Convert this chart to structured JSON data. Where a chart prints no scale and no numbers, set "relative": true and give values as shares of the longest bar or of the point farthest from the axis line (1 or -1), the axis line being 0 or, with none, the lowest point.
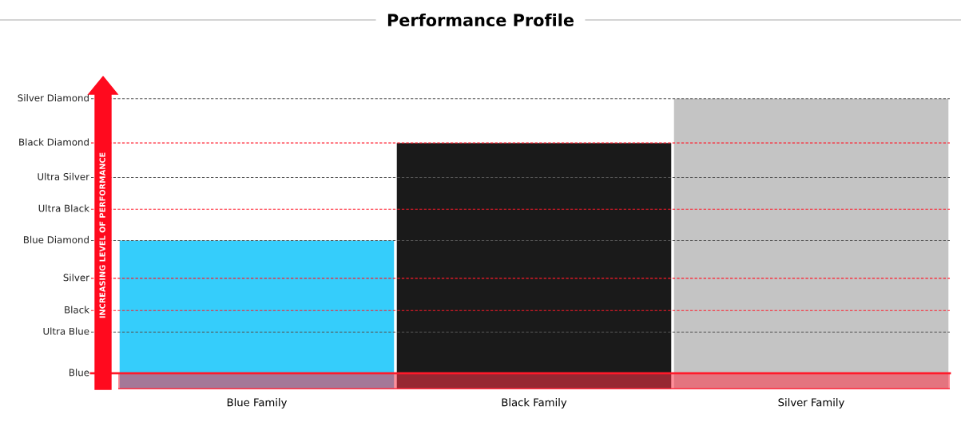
{
  "chart_data": {
    "type": "bar",
    "title": "Performance Profile",
    "categories": [
      "Blue Family",
      "Black Family",
      "Silver Family"
    ],
    "values": [
      0.512,
      0.848,
      1
    ],
    "colors": [
      "#35cdfb",
      "#1a1a1a",
      "#c4c4c4"
    ],
    "relative": true,
    "ref_lines": [
      {
        "axis": "y",
        "value": 0.055,
        "label": "Blue",
        "color": "#ff1a2a",
        "line_style": "solid"
      },
      {
        "axis": "y",
        "value": 0.197,
        "label": "Ultra Blue",
        "color": "#555555",
        "line_style": "dashed"
      },
      {
        "axis": "y",
        "value": 0.271,
        "label": "Black",
        "color": "#ff1a2a",
        "line_style": "dashed"
      },
      {
        "axis": "y",
        "value": 0.382,
        "label": "Silver",
        "color": "#ff1a2a",
        "line_style": "dashed"
      },
      {
        "axis": "y",
        "value": 0.512,
        "label": "Blue Diamond",
        "color": "#555555",
        "line_style": "dashed"
      },
      {
        "axis": "y",
        "value": 0.62,
        "label": "Ultra Black",
        "color": "#ff1a2a",
        "line_style": "dashed"
      },
      {
        "axis": "y",
        "value": 0.729,
        "label": "Ultra Silver",
        "color": "#555555",
        "line_style": "dashed"
      },
      {
        "axis": "y",
        "value": 0.848,
        "label": "Black Diamond",
        "color": "#ff1a2a",
        "line_style": "dashed"
      },
      {
        "axis": "y",
        "value": 1,
        "label": "Silver Diamond",
        "color": "#555555",
        "line_style": "dashed"
      }
    ],
    "bands": [
      {
        "axis": "y",
        "from": 0,
        "to": 0.055,
        "color": "#ff3347"
      }
    ],
    "annotations": [
      "INCREASING LEVEL OF PERFORMANCE"
    ],
    "grid": false
  }
}
